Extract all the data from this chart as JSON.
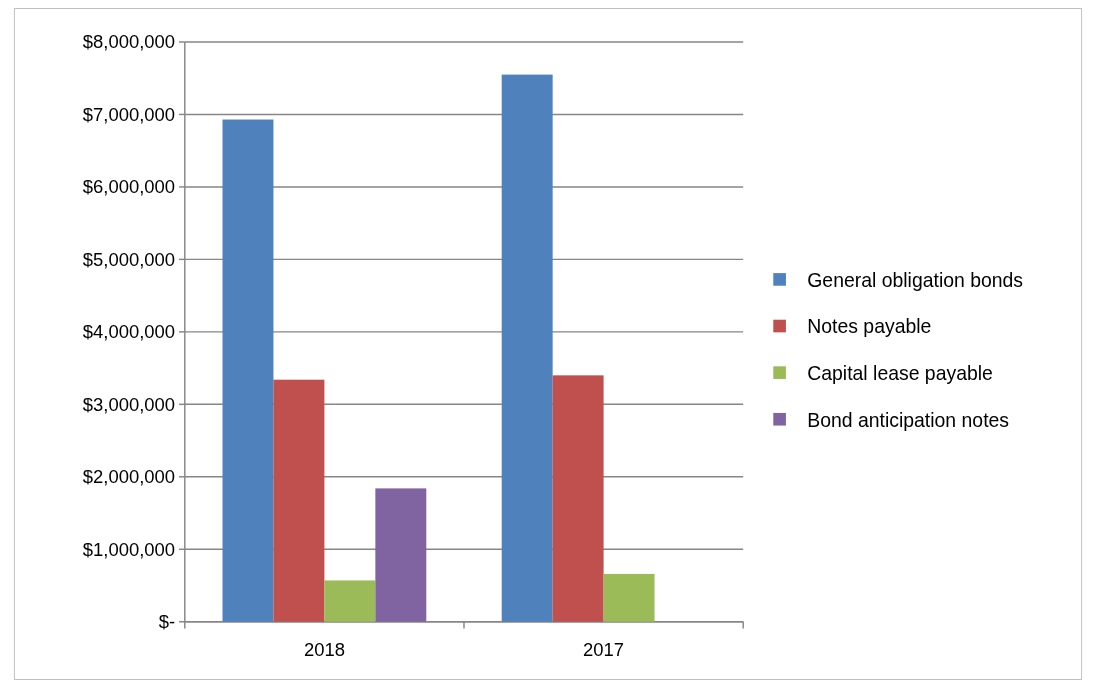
{
  "chart_data": {
    "type": "bar",
    "categories": [
      "2018",
      "2017"
    ],
    "series": [
      {
        "name": "General obligation bonds",
        "color": "#4f81bd",
        "values": [
          6930000,
          7550000
        ]
      },
      {
        "name": "Notes payable",
        "color": "#c0504d",
        "values": [
          3340000,
          3400000
        ]
      },
      {
        "name": "Capital lease payable",
        "color": "#9bbb59",
        "values": [
          570000,
          660000
        ]
      },
      {
        "name": "Bond anticipation notes",
        "color": "#8064a2",
        "values": [
          1840000,
          null
        ]
      }
    ],
    "ylim": [
      0,
      8000000
    ],
    "yticks": [
      {
        "value": 0,
        "label": "$-"
      },
      {
        "value": 1000000,
        "label": "$1,000,000"
      },
      {
        "value": 2000000,
        "label": "$2,000,000"
      },
      {
        "value": 3000000,
        "label": "$3,000,000"
      },
      {
        "value": 4000000,
        "label": "$4,000,000"
      },
      {
        "value": 5000000,
        "label": "$5,000,000"
      },
      {
        "value": 6000000,
        "label": "$6,000,000"
      },
      {
        "value": 7000000,
        "label": "$7,000,000"
      },
      {
        "value": 8000000,
        "label": "$8,000,000"
      }
    ],
    "grid": "y",
    "legend": "right"
  }
}
